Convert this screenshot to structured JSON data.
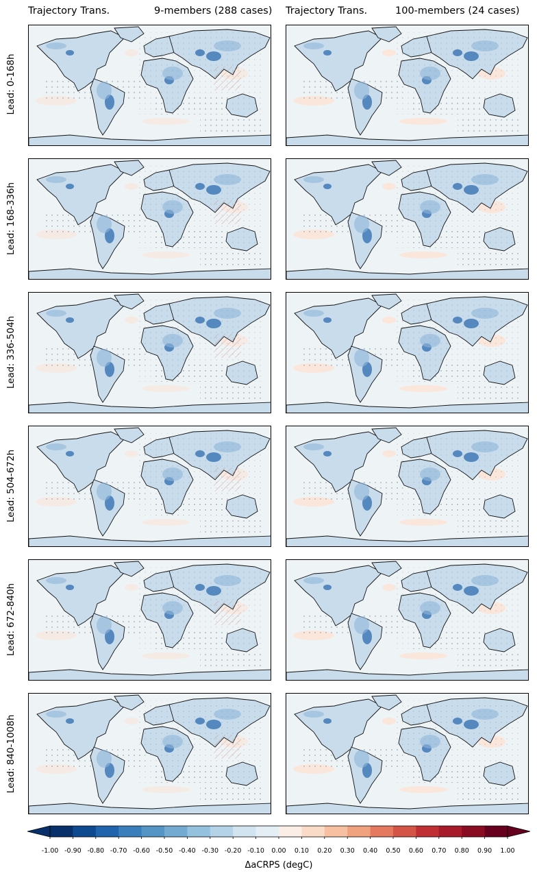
{
  "columns": [
    {
      "left": "Trajectory Trans.",
      "right": "9-members (288 cases)"
    },
    {
      "left": "Trajectory Trans.",
      "right": "100-members (24 cases)"
    }
  ],
  "rows": [
    {
      "label": "Lead: 0-168h"
    },
    {
      "label": "Lead: 168-336h"
    },
    {
      "label": "Lead: 336-504h"
    },
    {
      "label": "Lead: 504-672h"
    },
    {
      "label": "Lead: 672-840h"
    },
    {
      "label": "Lead: 840-1008h"
    }
  ],
  "colorbar": {
    "label": "ΔaCRPS (degC)",
    "ticks": [
      "-1.00",
      "-0.90",
      "-0.80",
      "-0.70",
      "-0.60",
      "-0.50",
      "-0.40",
      "-0.30",
      "-0.20",
      "-0.10",
      "0.00",
      "0.10",
      "0.20",
      "0.30",
      "0.40",
      "0.50",
      "0.60",
      "0.70",
      "0.80",
      "0.90",
      "1.00"
    ],
    "colors": [
      "#08306b",
      "#0d4a8f",
      "#1f64ad",
      "#3a7fbb",
      "#5495c6",
      "#72aad2",
      "#94c1de",
      "#b5d3e8",
      "#d2e4f0",
      "#e4eef5",
      "#fbeee6",
      "#fadbc8",
      "#f6c0a1",
      "#f0a17e",
      "#e5795f",
      "#d55448",
      "#bf2f34",
      "#a71a2a",
      "#8a0c23",
      "#67001f"
    ],
    "extend": "both",
    "range": [
      -1.0,
      1.0
    ]
  },
  "map_colors": {
    "background": "#eef3f6",
    "land_light": "#c9dcec",
    "land_mid": "#8fb6d8",
    "land_dark": "#3f79b6",
    "warm": "#fbe4d8"
  }
}
